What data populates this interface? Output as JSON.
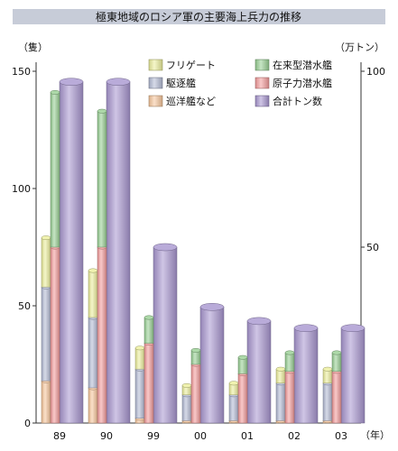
{
  "chart_data": {
    "type": "bar",
    "title": "極東地域のロシア軍の主要海上兵力の推移",
    "categories": [
      "89",
      "90",
      "99",
      "00",
      "01",
      "02",
      "03"
    ],
    "left_axis": {
      "label": "（隻）",
      "ylim": [
        0,
        150
      ],
      "ticks": [
        "0",
        "50",
        "100",
        "150"
      ]
    },
    "right_axis": {
      "label": "（万トン）",
      "ylim": [
        0,
        100
      ],
      "ticks": [
        "50",
        "100"
      ]
    },
    "x_unit_label": "（年）",
    "series": [
      {
        "name": "フリゲート",
        "stack": "type",
        "color": "#ecef9c",
        "values": [
          21,
          20,
          9,
          4,
          5,
          6,
          6
        ]
      },
      {
        "name": "駆逐艦",
        "stack": "type",
        "color": "#b4bcd6",
        "values": [
          40,
          30,
          21,
          11,
          11,
          16,
          16
        ]
      },
      {
        "name": "巡洋艦など",
        "stack": "type",
        "color": "#f8c79c",
        "values": [
          18,
          15,
          2,
          1,
          1,
          1,
          1
        ]
      },
      {
        "name": "在来型潜水艦",
        "stack": "submarine",
        "color": "#98cf94",
        "values": [
          66,
          58,
          11,
          6,
          7,
          8,
          8
        ]
      },
      {
        "name": "原子力潜水艦",
        "stack": "submarine",
        "color": "#f49c9c",
        "values": [
          75,
          75,
          34,
          25,
          21,
          22,
          22
        ]
      },
      {
        "name": "合計トン数",
        "stack": "tonnage",
        "axis": "right",
        "color": "#a896cf",
        "values": [
          97,
          97,
          50,
          33,
          29,
          27,
          27
        ]
      }
    ]
  }
}
